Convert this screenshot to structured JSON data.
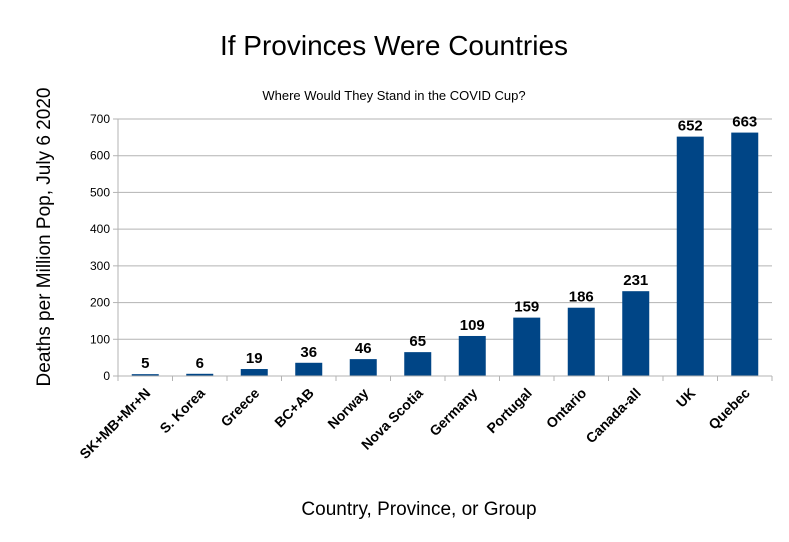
{
  "chart_data": {
    "type": "bar",
    "title": "If Provinces Were Countries",
    "subtitle": "Where Would They Stand in the COVID Cup?",
    "xlabel": "Country, Province, or Group",
    "ylabel": "Deaths per Million Pop, July 6 2020",
    "ylim": [
      0,
      700
    ],
    "yticks": [
      0,
      100,
      200,
      300,
      400,
      500,
      600,
      700
    ],
    "grid": true,
    "legend": "none",
    "bar_color": "#004586",
    "categories": [
      "SK+MB+Mr+N",
      "S. Korea",
      "Greece",
      "BC+AB",
      "Norway",
      "Nova Scotia",
      "Germany",
      "Portugal",
      "Ontario",
      "Canada-all",
      "UK",
      "Quebec"
    ],
    "values": [
      5,
      6,
      19,
      36,
      46,
      65,
      109,
      159,
      186,
      231,
      652,
      663
    ]
  }
}
